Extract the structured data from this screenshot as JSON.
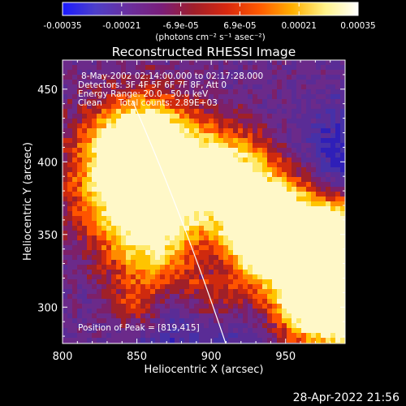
{
  "colorbar": {
    "tick_labels": [
      "-0.00035",
      "-0.00021",
      "-6.9e-05",
      "6.9e-05",
      "0.00021",
      "0.00035"
    ],
    "unit_label": "(photons cm⁻² s⁻¹ asec⁻²)",
    "stops": [
      "#1a1aff",
      "#4d3fc9",
      "#6a2f9e",
      "#7a1e7a",
      "#a01f2a",
      "#d8280f",
      "#ff5a00",
      "#ffb000",
      "#fff38a",
      "#ffffff"
    ]
  },
  "image": {
    "title": "Reconstructed RHESSI Image",
    "info_lines": [
      "8-May-2002 02:14:00.000 to 02:17:28.000",
      "Detectors: 3F 4F 5F 6F 7F 8F, Att 0",
      "Energy Range: 20.0 - 50.0 keV",
      "Clean      Total counts: 2.89E+03"
    ],
    "peak_label": "Position of Peak = [819,415]",
    "x_axis": {
      "label": "Heliocentric X (arcsec)",
      "ticks": [
        800,
        850,
        900,
        950
      ],
      "range": [
        800,
        990
      ]
    },
    "y_axis": {
      "label": "Heliocentric Y (arcsec)",
      "ticks": [
        300,
        350,
        400,
        450
      ],
      "range": [
        275,
        470
      ]
    }
  },
  "footer": {
    "timestamp": "28-Apr-2022 21:56"
  }
}
